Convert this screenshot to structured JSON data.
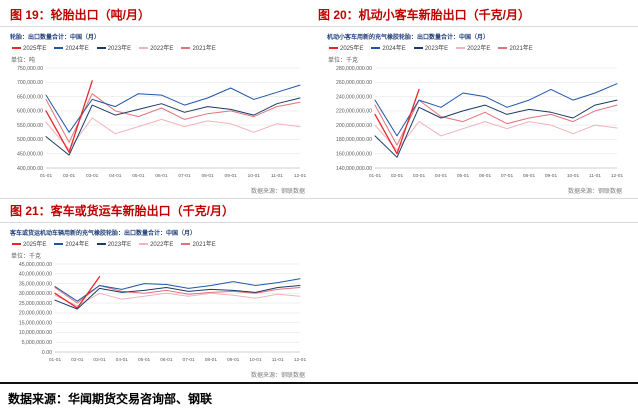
{
  "page": {
    "figure19_title": "图 19：轮胎出口（吨/月）",
    "figure20_title": "图 20：机动小客车新胎出口（千克/月）",
    "figure21_title": "图 21：客车或货运车新胎出口（千克/月）",
    "source_footer": "数据来源：华闻期货交易咨询部、钢联",
    "accent_color": "#c00000"
  },
  "chart_data": [
    {
      "type": "line",
      "title": "轮胎：出口数量合计：中国（月）",
      "unit_label": "单位：吨",
      "source_note": "数据来源：钢联数据",
      "legend_position": "top",
      "grid": true,
      "x": [
        "01-01",
        "02-01",
        "03-01",
        "04-01",
        "05-01",
        "06-01",
        "07-01",
        "08-01",
        "09-01",
        "10-01",
        "11-01",
        "12-01"
      ],
      "ylim": [
        400000,
        750000
      ],
      "y_ticks": [
        400000,
        450000,
        500000,
        550000,
        600000,
        650000,
        700000,
        750000
      ],
      "series": [
        {
          "name": "2025年E",
          "color": "#e8262a",
          "values": [
            600000,
            455000,
            705000
          ]
        },
        {
          "name": "2024年E",
          "color": "#2056a8",
          "values": [
            655000,
            525000,
            640000,
            615000,
            660000,
            655000,
            620000,
            645000,
            680000,
            640000,
            665000,
            690000
          ]
        },
        {
          "name": "2023年E",
          "color": "#1b3a66",
          "values": [
            510000,
            445000,
            620000,
            585000,
            605000,
            625000,
            595000,
            615000,
            605000,
            585000,
            625000,
            645000
          ]
        },
        {
          "name": "2022年E",
          "color": "#f2b3ba",
          "values": [
            560000,
            465000,
            575000,
            520000,
            545000,
            570000,
            545000,
            565000,
            555000,
            525000,
            555000,
            545000
          ]
        },
        {
          "name": "2021年E",
          "color": "#e1737b",
          "values": [
            640000,
            490000,
            660000,
            600000,
            580000,
            610000,
            570000,
            590000,
            600000,
            580000,
            615000,
            630000
          ]
        }
      ]
    },
    {
      "type": "line",
      "title": "机动小客车用新的充气橡胶轮胎：出口数量合计：中国（月）",
      "unit_label": "单位：千克",
      "source_note": "数据来源：钢联数据",
      "legend_position": "top",
      "grid": true,
      "x": [
        "01-01",
        "02-01",
        "03-01",
        "04-01",
        "05-01",
        "06-01",
        "07-01",
        "08-01",
        "09-01",
        "10-01",
        "11-01",
        "12-01"
      ],
      "ylim": [
        140000000,
        280000000
      ],
      "y_ticks": [
        140000000,
        160000000,
        180000000,
        200000000,
        220000000,
        240000000,
        260000000,
        280000000
      ],
      "series": [
        {
          "name": "2025年E",
          "color": "#e8262a",
          "values": [
            215000000,
            160000000,
            250000000
          ]
        },
        {
          "name": "2024年E",
          "color": "#2056a8",
          "values": [
            235000000,
            185000000,
            235000000,
            225000000,
            245000000,
            240000000,
            225000000,
            235000000,
            250000000,
            235000000,
            245000000,
            258000000
          ]
        },
        {
          "name": "2023年E",
          "color": "#1b3a66",
          "values": [
            185000000,
            155000000,
            225000000,
            210000000,
            220000000,
            228000000,
            215000000,
            222000000,
            218000000,
            210000000,
            228000000,
            235000000
          ]
        },
        {
          "name": "2022年E",
          "color": "#f2b3ba",
          "values": [
            200000000,
            165000000,
            205000000,
            185000000,
            195000000,
            205000000,
            195000000,
            205000000,
            200000000,
            188000000,
            200000000,
            196000000
          ]
        },
        {
          "name": "2021年E",
          "color": "#e1737b",
          "values": [
            228000000,
            172000000,
            235000000,
            212000000,
            205000000,
            218000000,
            202000000,
            210000000,
            215000000,
            205000000,
            220000000,
            228000000
          ]
        }
      ]
    },
    {
      "type": "line",
      "title": "客车或货运机动车辆用新的充气橡胶轮胎：出口数量合计：中国（月）",
      "unit_label": "单位：千克",
      "source_note": "数据来源：钢联数据",
      "legend_position": "top",
      "grid": true,
      "x": [
        "01-01",
        "02-01",
        "03-01",
        "04-01",
        "05-01",
        "06-01",
        "07-01",
        "08-01",
        "09-01",
        "10-01",
        "11-01",
        "12-01"
      ],
      "ylim": [
        0,
        45000000
      ],
      "y_ticks": [
        0,
        5000000,
        10000000,
        15000000,
        20000000,
        25000000,
        30000000,
        35000000,
        40000000,
        45000000
      ],
      "series": [
        {
          "name": "2025年E",
          "color": "#e8262a",
          "values": [
            30000000,
            22500000,
            38500000
          ]
        },
        {
          "name": "2024年E",
          "color": "#2056a8",
          "values": [
            33500000,
            26000000,
            34000000,
            32000000,
            35000000,
            34500000,
            32500000,
            34000000,
            36000000,
            34000000,
            35500000,
            37500000
          ]
        },
        {
          "name": "2023年E",
          "color": "#1b3a66",
          "values": [
            26500000,
            22000000,
            32500000,
            30500000,
            31500000,
            33000000,
            31000000,
            32000000,
            31500000,
            30500000,
            33000000,
            34000000
          ]
        },
        {
          "name": "2022年E",
          "color": "#f2b3ba",
          "values": [
            29000000,
            23500000,
            30000000,
            27000000,
            28500000,
            30000000,
            28500000,
            30000000,
            29000000,
            27500000,
            29500000,
            28500000
          ]
        },
        {
          "name": "2021年E",
          "color": "#e1737b",
          "values": [
            33000000,
            25000000,
            34000000,
            31000000,
            30000000,
            31500000,
            29500000,
            30500000,
            31000000,
            30000000,
            32000000,
            33000000
          ]
        }
      ]
    }
  ]
}
